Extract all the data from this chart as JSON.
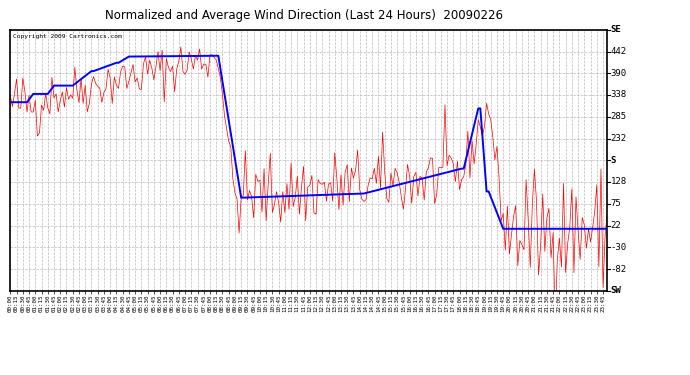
{
  "title": "Normalized and Average Wind Direction (Last 24 Hours)  20090226",
  "copyright": "Copyright 2009 Cartronics.com",
  "yticks_right": [
    "SE",
    "442",
    "390",
    "338",
    "285",
    "232",
    "S",
    "128",
    "75",
    "22",
    "-30",
    "-82",
    "SW"
  ],
  "ytick_values": [
    494,
    442,
    390,
    338,
    285,
    232,
    180,
    128,
    75,
    22,
    -30,
    -82,
    -134
  ],
  "ymax": 494,
  "ymin": -134,
  "background_color": "#ffffff",
  "plot_bg": "#ffffff",
  "grid_color": "#bbbbbb",
  "red_color": "#ff0000",
  "blue_color": "#0000ff"
}
